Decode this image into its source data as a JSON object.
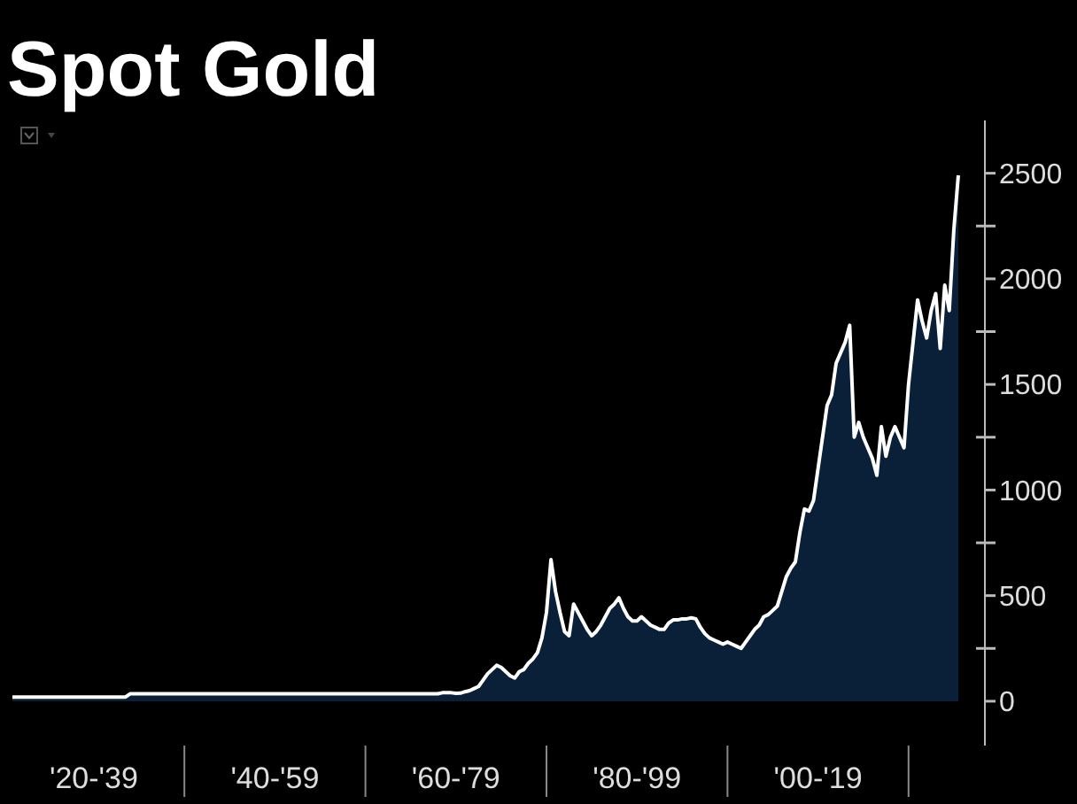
{
  "chart_data": {
    "type": "area",
    "title": "Spot Gold",
    "categories": [
      null,
      null,
      null,
      null,
      null,
      null,
      null,
      null,
      null,
      null,
      null,
      null,
      null,
      null,
      null,
      null,
      null,
      null,
      "'20-'39",
      null,
      null,
      null,
      null,
      null,
      null,
      null,
      null,
      null,
      null,
      null,
      null,
      null,
      null,
      null,
      null,
      null,
      null,
      null,
      null,
      null,
      null,
      null,
      null,
      null,
      null,
      null,
      null,
      null,
      null,
      null,
      null,
      null,
      null,
      null,
      null,
      null,
      null,
      null,
      "'40-'59",
      null,
      null,
      null,
      null,
      null,
      null,
      null,
      null,
      null,
      null,
      null,
      null,
      null,
      null,
      null,
      null,
      null,
      null,
      null,
      null,
      null,
      null,
      null,
      null,
      null,
      null,
      null,
      null,
      null,
      null,
      null,
      null,
      null,
      null,
      null,
      null,
      null,
      null,
      null,
      "'60-'79",
      null,
      null,
      null,
      null,
      null,
      null,
      null,
      null,
      null,
      null,
      null,
      null,
      null,
      null,
      null,
      null,
      null,
      null,
      null,
      null,
      null,
      null,
      null,
      null,
      null,
      null,
      null,
      null,
      null,
      null,
      null,
      null,
      null,
      null,
      null,
      null,
      null,
      null,
      null,
      "'80-'99",
      null,
      null,
      null,
      null,
      null,
      null,
      null,
      null,
      null,
      null,
      null,
      null,
      null,
      null,
      null,
      null,
      null,
      null,
      null,
      null,
      null,
      null,
      null,
      null,
      null,
      null,
      null,
      null,
      null,
      null,
      null,
      null,
      null,
      null,
      null,
      null,
      null,
      null,
      null,
      "'00-'19",
      null,
      null,
      null,
      null,
      null,
      null,
      null,
      null,
      null,
      null,
      null,
      null,
      null,
      null,
      null,
      null,
      null,
      null,
      null,
      null,
      null,
      null,
      null,
      null,
      null,
      null,
      null,
      null,
      null,
      null,
      null
    ],
    "series": [
      {
        "color": "#0a2038",
        "values": [
          20,
          20,
          20,
          20,
          20,
          20,
          20,
          20,
          20,
          20,
          20,
          20,
          20,
          20,
          20,
          20,
          20,
          20,
          20,
          20,
          20,
          20,
          20,
          20,
          20,
          20,
          35,
          35,
          35,
          35,
          35,
          35,
          35,
          35,
          35,
          35,
          35,
          35,
          35,
          35,
          35,
          35,
          35,
          35,
          35,
          35,
          35,
          35,
          35,
          35,
          35,
          35,
          35,
          35,
          35,
          35,
          35,
          35,
          35,
          35,
          35,
          35,
          35,
          35,
          35,
          35,
          35,
          35,
          35,
          35,
          35,
          35,
          35,
          35,
          35,
          35,
          35,
          35,
          35,
          35,
          35,
          35,
          35,
          35,
          35,
          35,
          35,
          35,
          35,
          35,
          35,
          35,
          35,
          35,
          35,
          40,
          40,
          40,
          37,
          38,
          45,
          50,
          60,
          70,
          100,
          130,
          150,
          170,
          160,
          140,
          120,
          110,
          140,
          150,
          180,
          200,
          230,
          300,
          420,
          670,
          520,
          420,
          330,
          310,
          460,
          420,
          380,
          340,
          310,
          330,
          360,
          400,
          440,
          460,
          490,
          440,
          400,
          380,
          380,
          400,
          380,
          360,
          350,
          340,
          340,
          370,
          385,
          385,
          390,
          390,
          395,
          390,
          350,
          320,
          300,
          290,
          280,
          270,
          280,
          270,
          260,
          250,
          280,
          310,
          340,
          360,
          400,
          410,
          430,
          450,
          520,
          590,
          630,
          660,
          800,
          910,
          900,
          950,
          1100,
          1250,
          1400,
          1450,
          1600,
          1650,
          1700,
          1780,
          1250,
          1320,
          1250,
          1200,
          1150,
          1070,
          1300,
          1160,
          1250,
          1300,
          1250,
          1200,
          1500,
          1700,
          1900,
          1800,
          1720,
          1850,
          1930,
          1670,
          1970,
          1850,
          2230,
          2490
        ]
      }
    ],
    "ylim": [
      -210,
      2750
    ],
    "yticks": [
      0,
      {
        "value": 250,
        "label": null
      },
      500,
      {
        "value": 750,
        "label": null
      },
      1000,
      {
        "value": 1250,
        "label": null
      },
      1500,
      {
        "value": 1750,
        "label": null
      },
      2000,
      {
        "value": 2250,
        "label": null
      },
      2500
    ],
    "grid": false
  }
}
